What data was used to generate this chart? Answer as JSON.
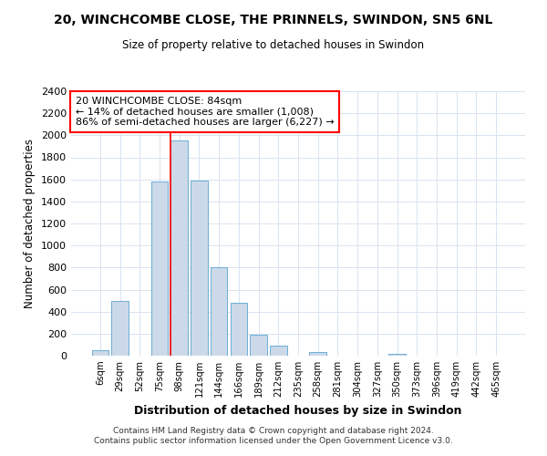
{
  "title": "20, WINCHCOMBE CLOSE, THE PRINNELS, SWINDON, SN5 6NL",
  "subtitle": "Size of property relative to detached houses in Swindon",
  "xlabel": "Distribution of detached houses by size in Swindon",
  "ylabel": "Number of detached properties",
  "bar_color": "#ccd9e8",
  "bar_edge_color": "#6baed6",
  "categories": [
    "6sqm",
    "29sqm",
    "52sqm",
    "75sqm",
    "98sqm",
    "121sqm",
    "144sqm",
    "166sqm",
    "189sqm",
    "212sqm",
    "235sqm",
    "258sqm",
    "281sqm",
    "304sqm",
    "327sqm",
    "350sqm",
    "373sqm",
    "396sqm",
    "419sqm",
    "442sqm",
    "465sqm"
  ],
  "values": [
    50,
    500,
    0,
    1580,
    1950,
    1590,
    800,
    480,
    190,
    90,
    0,
    30,
    0,
    0,
    0,
    20,
    0,
    0,
    0,
    0,
    0
  ],
  "ylim": [
    0,
    2400
  ],
  "yticks": [
    0,
    200,
    400,
    600,
    800,
    1000,
    1200,
    1400,
    1600,
    1800,
    2000,
    2200,
    2400
  ],
  "annotation_box_text": "20 WINCHCOMBE CLOSE: 84sqm\n← 14% of detached houses are smaller (1,008)\n86% of semi-detached houses are larger (6,227) →",
  "footer_line1": "Contains HM Land Registry data © Crown copyright and database right 2024.",
  "footer_line2": "Contains public sector information licensed under the Open Government Licence v3.0.",
  "background_color": "#ffffff",
  "grid_color": "#d8e4f0"
}
